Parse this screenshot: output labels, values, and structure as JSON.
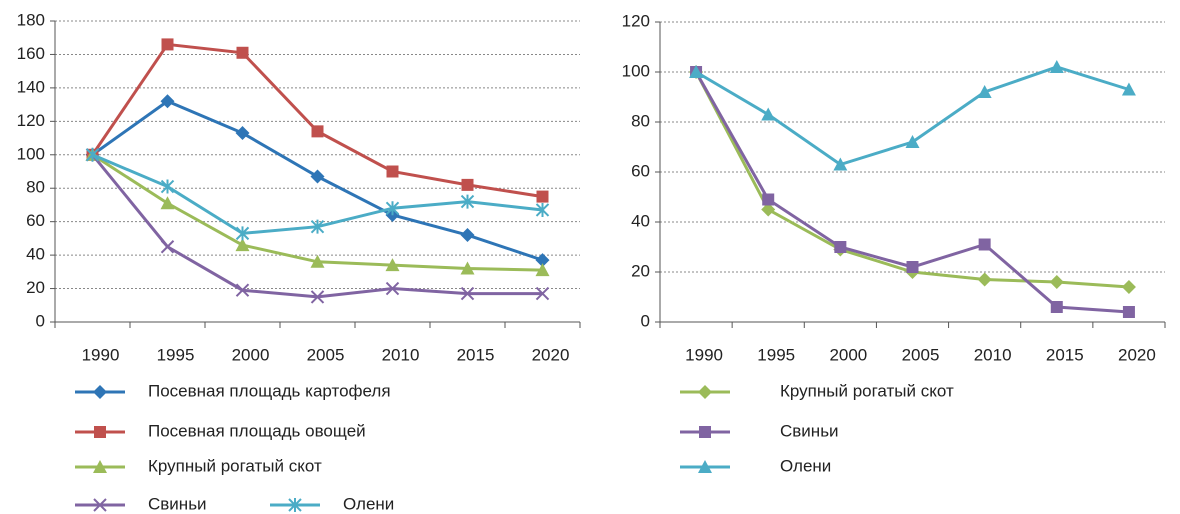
{
  "chart_data": [
    {
      "type": "line",
      "categories": [
        "1990",
        "1995",
        "2000",
        "2005",
        "2010",
        "2015",
        "2020"
      ],
      "ylim": [
        0,
        180
      ],
      "yticks": [
        0,
        20,
        40,
        60,
        80,
        100,
        120,
        140,
        160,
        180
      ],
      "grid": true,
      "series": [
        {
          "name": "Посевная площадь картофеля",
          "color": "#2e75b6",
          "marker": "diamond",
          "values": [
            100,
            132,
            113,
            87,
            64,
            52,
            37
          ]
        },
        {
          "name": "Посевная площадь овощей",
          "color": "#c0504d",
          "marker": "square",
          "values": [
            100,
            166,
            161,
            114,
            90,
            82,
            75
          ]
        },
        {
          "name": "Крупный рогатый скот",
          "color": "#9bbb59",
          "marker": "triangle",
          "values": [
            100,
            71,
            46,
            36,
            34,
            32,
            31
          ]
        },
        {
          "name": "Свиньи",
          "color": "#8064a2",
          "marker": "x",
          "values": [
            100,
            45,
            19,
            15,
            20,
            17,
            17
          ]
        },
        {
          "name": "Олени",
          "color": "#4bacc6",
          "marker": "star",
          "values": [
            100,
            81,
            53,
            57,
            68,
            72,
            67
          ]
        }
      ]
    },
    {
      "type": "line",
      "categories": [
        "1990",
        "1995",
        "2000",
        "2005",
        "2010",
        "2015",
        "2020"
      ],
      "ylim": [
        0,
        120
      ],
      "yticks": [
        0,
        20,
        40,
        60,
        80,
        100,
        120
      ],
      "grid": true,
      "series": [
        {
          "name": "Крупный рогатый скот",
          "color": "#9bbb59",
          "marker": "diamond",
          "values": [
            100,
            45,
            29,
            20,
            17,
            16,
            14
          ]
        },
        {
          "name": "Свиньи",
          "color": "#8064a2",
          "marker": "square",
          "values": [
            100,
            49,
            30,
            22,
            31,
            6,
            4
          ]
        },
        {
          "name": "Олени",
          "color": "#4bacc6",
          "marker": "triangle",
          "values": [
            100,
            83,
            63,
            72,
            92,
            102,
            93
          ]
        }
      ]
    }
  ]
}
